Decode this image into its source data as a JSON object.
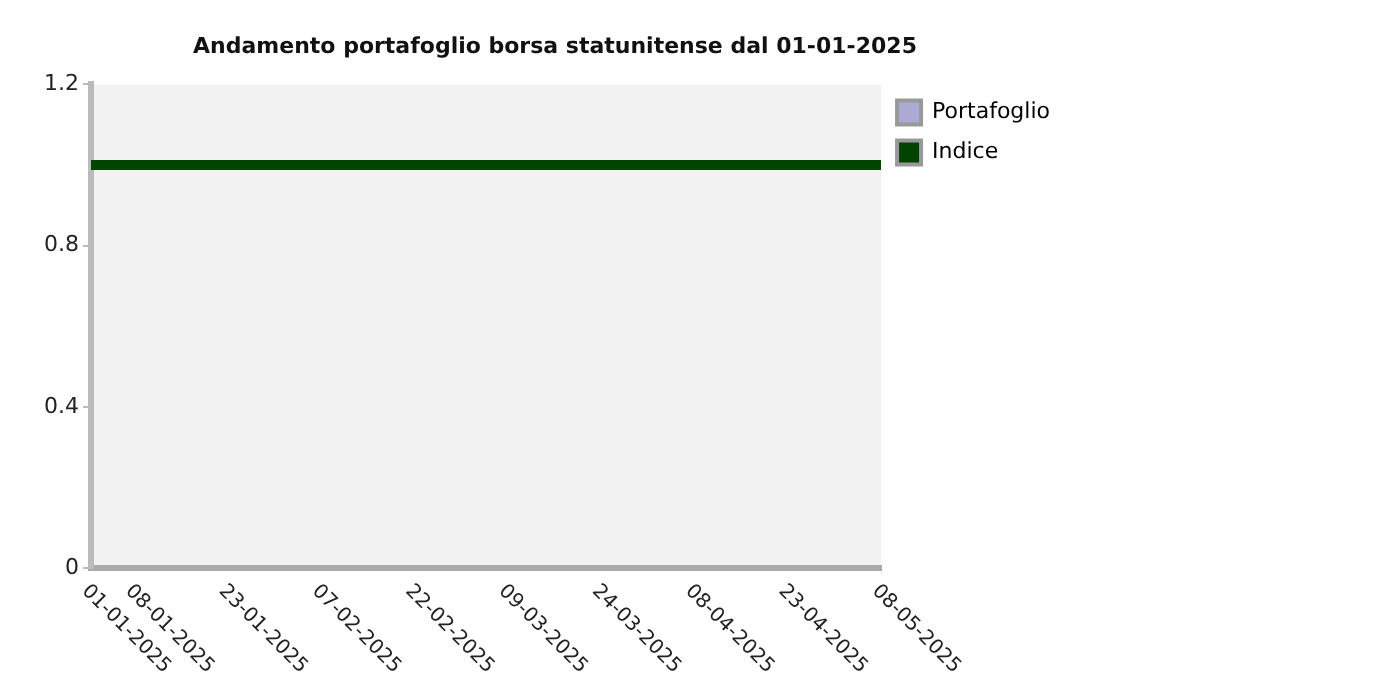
{
  "chart_data": {
    "type": "line",
    "title": "Andamento portafoglio borsa statunitense dal 01-01-2025",
    "xlim": [
      "2025-01-01",
      "2025-05-08"
    ],
    "xticks": [
      {
        "value": "2025-01-01",
        "label": "01-01-2025"
      },
      {
        "value": "2025-01-08",
        "label": "08-01-2025"
      },
      {
        "value": "2025-01-23",
        "label": "23-01-2025"
      },
      {
        "value": "2025-02-07",
        "label": "07-02-2025"
      },
      {
        "value": "2025-02-22",
        "label": "22-02-2025"
      },
      {
        "value": "2025-03-09",
        "label": "09-03-2025"
      },
      {
        "value": "2025-03-24",
        "label": "24-03-2025"
      },
      {
        "value": "2025-04-08",
        "label": "08-04-2025"
      },
      {
        "value": "2025-04-23",
        "label": "23-04-2025"
      },
      {
        "value": "2025-05-08",
        "label": "08-05-2025"
      }
    ],
    "ylim": [
      0,
      1.2
    ],
    "yticks": [
      0,
      0.4,
      0.8,
      1.2
    ],
    "series": [
      {
        "name": "Portafoglio",
        "color": "#aaaad5"
      },
      {
        "name": "Indice",
        "color": "#004400",
        "x": [
          "2025-01-01",
          "2025-05-08"
        ],
        "values": [
          1,
          1
        ]
      }
    ],
    "legend": "right",
    "grid": false,
    "marker": "none",
    "line_style": "solid"
  }
}
